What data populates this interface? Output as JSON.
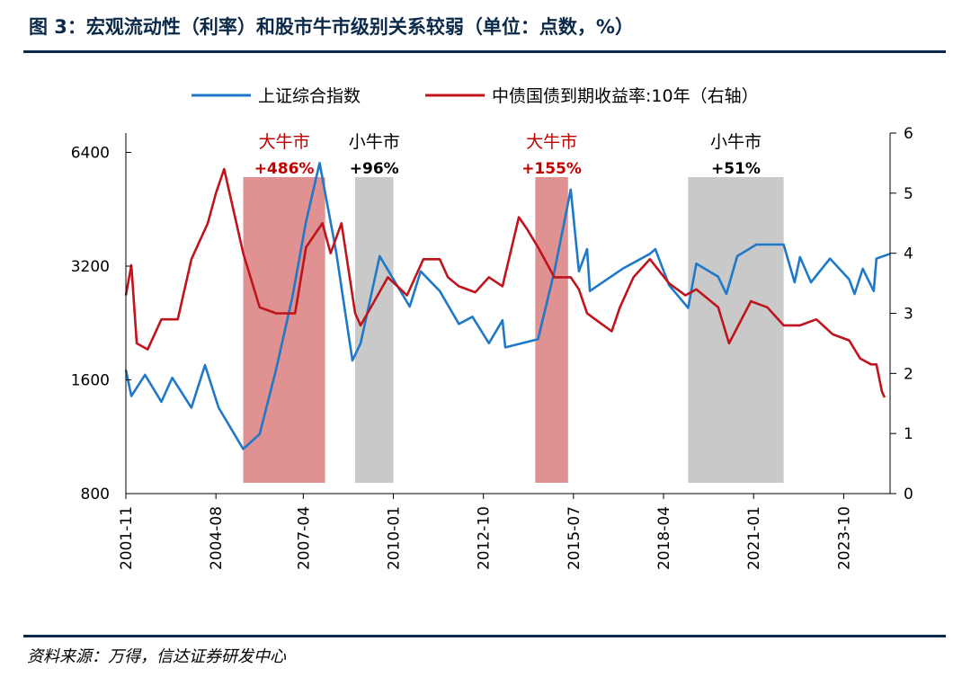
{
  "header": {
    "title": "图 3：宏观流动性（利率）和股市牛市级别关系较弱（单位：点数，%）"
  },
  "footer": {
    "source": "资料来源：万得，信达证券研发中心"
  },
  "chart_data": {
    "type": "line",
    "title": "图 3：宏观流动性（利率）和股市牛市级别关系较弱（单位：点数，%）",
    "legend_position": "top",
    "grid": false,
    "x_tick_labels": [
      "2001-11",
      "2004-08",
      "2007-04",
      "2010-01",
      "2012-10",
      "2015-07",
      "2018-04",
      "2021-01",
      "2023-10"
    ],
    "x_range": [
      "2001-11",
      "2025-03"
    ],
    "y_left": {
      "scale": "log",
      "ticks": [
        800,
        1600,
        3200,
        6400
      ],
      "range": [
        800,
        7200
      ]
    },
    "y_right": {
      "scale": "linear",
      "ticks": [
        0,
        1,
        2,
        3,
        4,
        5,
        6
      ],
      "range": [
        0,
        6
      ]
    },
    "series": [
      {
        "name": "上证综合指数",
        "axis": "left",
        "color": "#1f78c8",
        "points": [
          [
            "2001-11",
            1700
          ],
          [
            "2002-01",
            1450
          ],
          [
            "2002-06",
            1650
          ],
          [
            "2002-12",
            1400
          ],
          [
            "2003-04",
            1620
          ],
          [
            "2003-11",
            1350
          ],
          [
            "2004-04",
            1750
          ],
          [
            "2004-09",
            1350
          ],
          [
            "2005-06",
            1050
          ],
          [
            "2005-12",
            1150
          ],
          [
            "2006-06",
            1700
          ],
          [
            "2006-12",
            2650
          ],
          [
            "2007-05",
            4200
          ],
          [
            "2007-10",
            6000
          ],
          [
            "2008-04",
            3500
          ],
          [
            "2008-10",
            1800
          ],
          [
            "2009-01",
            2000
          ],
          [
            "2009-08",
            3400
          ],
          [
            "2010-07",
            2500
          ],
          [
            "2010-11",
            3100
          ],
          [
            "2011-06",
            2750
          ],
          [
            "2012-01",
            2250
          ],
          [
            "2012-06",
            2350
          ],
          [
            "2012-12",
            2000
          ],
          [
            "2013-05",
            2300
          ],
          [
            "2013-06",
            1950
          ],
          [
            "2014-06",
            2050
          ],
          [
            "2014-12",
            3100
          ],
          [
            "2015-06",
            5100
          ],
          [
            "2015-09",
            3100
          ],
          [
            "2015-12",
            3550
          ],
          [
            "2016-01",
            2750
          ],
          [
            "2017-01",
            3150
          ],
          [
            "2017-11",
            3450
          ],
          [
            "2018-01",
            3550
          ],
          [
            "2018-06",
            2850
          ],
          [
            "2019-01",
            2480
          ],
          [
            "2019-04",
            3250
          ],
          [
            "2019-12",
            3000
          ],
          [
            "2020-03",
            2700
          ],
          [
            "2020-07",
            3400
          ],
          [
            "2021-02",
            3650
          ],
          [
            "2021-12",
            3650
          ],
          [
            "2022-04",
            2900
          ],
          [
            "2022-06",
            3380
          ],
          [
            "2022-10",
            2900
          ],
          [
            "2023-05",
            3350
          ],
          [
            "2023-12",
            2950
          ],
          [
            "2024-02",
            2700
          ],
          [
            "2024-05",
            3150
          ],
          [
            "2024-09",
            2750
          ],
          [
            "2024-10",
            3350
          ],
          [
            "2025-03",
            3450
          ]
        ]
      },
      {
        "name": "中债国债到期收益率:10年（右轴）",
        "axis": "right",
        "color": "#c0141c",
        "points": [
          [
            "2001-11",
            3.3
          ],
          [
            "2002-01",
            3.8
          ],
          [
            "2002-03",
            2.5
          ],
          [
            "2002-07",
            2.4
          ],
          [
            "2002-12",
            2.9
          ],
          [
            "2003-06",
            2.9
          ],
          [
            "2003-11",
            3.9
          ],
          [
            "2004-05",
            4.5
          ],
          [
            "2004-08",
            5.0
          ],
          [
            "2004-11",
            5.4
          ],
          [
            "2005-02",
            4.8
          ],
          [
            "2005-06",
            4.0
          ],
          [
            "2005-12",
            3.1
          ],
          [
            "2006-06",
            3.0
          ],
          [
            "2007-01",
            3.0
          ],
          [
            "2007-05",
            4.1
          ],
          [
            "2007-11",
            4.5
          ],
          [
            "2008-02",
            4.0
          ],
          [
            "2008-06",
            4.5
          ],
          [
            "2008-11",
            3.0
          ],
          [
            "2009-01",
            2.8
          ],
          [
            "2009-06",
            3.2
          ],
          [
            "2009-11",
            3.6
          ],
          [
            "2010-06",
            3.3
          ],
          [
            "2010-12",
            3.9
          ],
          [
            "2011-06",
            3.9
          ],
          [
            "2011-09",
            3.6
          ],
          [
            "2012-01",
            3.45
          ],
          [
            "2012-07",
            3.35
          ],
          [
            "2012-12",
            3.6
          ],
          [
            "2013-05",
            3.45
          ],
          [
            "2013-11",
            4.6
          ],
          [
            "2014-02",
            4.4
          ],
          [
            "2014-06",
            4.1
          ],
          [
            "2014-12",
            3.6
          ],
          [
            "2015-06",
            3.6
          ],
          [
            "2015-09",
            3.4
          ],
          [
            "2015-12",
            3.0
          ],
          [
            "2016-03",
            2.9
          ],
          [
            "2016-09",
            2.7
          ],
          [
            "2016-12",
            3.1
          ],
          [
            "2017-05",
            3.6
          ],
          [
            "2017-11",
            3.9
          ],
          [
            "2018-06",
            3.5
          ],
          [
            "2018-12",
            3.3
          ],
          [
            "2019-04",
            3.4
          ],
          [
            "2019-12",
            3.1
          ],
          [
            "2020-04",
            2.5
          ],
          [
            "2020-12",
            3.2
          ],
          [
            "2021-06",
            3.1
          ],
          [
            "2021-12",
            2.8
          ],
          [
            "2022-06",
            2.8
          ],
          [
            "2022-12",
            2.9
          ],
          [
            "2023-06",
            2.65
          ],
          [
            "2023-12",
            2.55
          ],
          [
            "2024-04",
            2.25
          ],
          [
            "2024-08",
            2.15
          ],
          [
            "2024-10",
            2.15
          ],
          [
            "2024-12",
            1.7
          ],
          [
            "2025-01",
            1.6
          ]
        ]
      }
    ],
    "highlight_bands": [
      {
        "start": "2005-06",
        "end": "2007-12",
        "color": "#e09191",
        "label_line1": "大牛市",
        "label_line2": "+486%",
        "label_color": "#c00000"
      },
      {
        "start": "2008-11",
        "end": "2010-01",
        "color": "#c9c9c9",
        "label_line1": "小牛市",
        "label_line2": "+96%",
        "label_color": "#000000"
      },
      {
        "start": "2014-05",
        "end": "2015-05",
        "color": "#e09191",
        "label_line1": "大牛市",
        "label_line2": "+155%",
        "label_color": "#c00000"
      },
      {
        "start": "2019-01",
        "end": "2021-12",
        "color": "#c9c9c9",
        "label_line1": "小牛市",
        "label_line2": "+51%",
        "label_color": "#000000"
      }
    ]
  }
}
